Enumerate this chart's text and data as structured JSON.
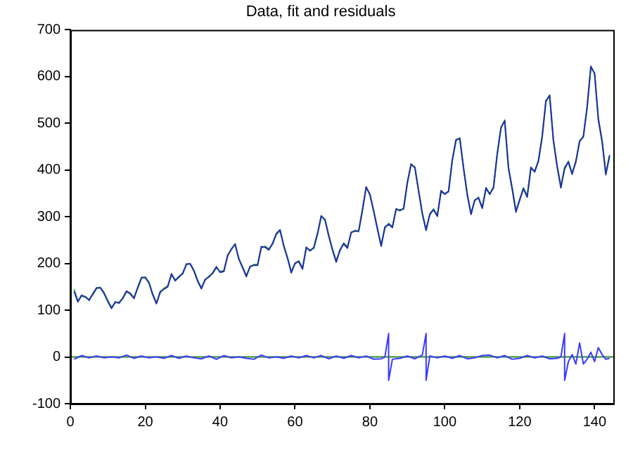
{
  "chart_data": {
    "type": "line",
    "title": "Data, fit and residuals",
    "xlim": [
      0,
      145
    ],
    "xticks": [
      0,
      20,
      40,
      60,
      80,
      100,
      120,
      140
    ],
    "ylim": [
      -100,
      700
    ],
    "yticks": [
      -100,
      0,
      100,
      200,
      300,
      400,
      500,
      600,
      700
    ],
    "grid": false,
    "legend": false,
    "marker": "none",
    "line_style": "solid",
    "ref_lines": [
      {
        "axis": "y",
        "value": 0,
        "color": "#2e8b2e"
      }
    ],
    "series": [
      {
        "color": "#1f2fa8",
        "x": [
          1,
          2,
          3,
          4,
          5,
          6,
          7,
          8,
          9,
          10,
          11,
          12,
          13,
          14,
          15,
          16,
          17,
          18,
          19,
          20,
          21,
          22,
          23,
          24,
          25,
          26,
          27,
          28,
          29,
          30,
          31,
          32,
          33,
          34,
          35,
          36,
          37,
          38,
          39,
          40,
          41,
          42,
          43,
          44,
          45,
          46,
          47,
          48,
          49,
          50,
          51,
          52,
          53,
          54,
          55,
          56,
          57,
          58,
          59,
          60,
          61,
          62,
          63,
          64,
          65,
          66,
          67,
          68,
          69,
          70,
          71,
          72,
          73,
          74,
          75,
          76,
          77,
          78,
          79,
          80,
          81,
          82,
          83,
          84,
          85,
          86,
          87,
          88,
          89,
          90,
          91,
          92,
          93,
          94,
          95,
          96,
          97,
          98,
          99,
          100,
          101,
          102,
          103,
          104,
          105,
          106,
          107,
          108,
          109,
          110,
          111,
          112,
          113,
          114,
          115,
          116,
          117,
          118,
          119,
          120,
          121,
          122,
          123,
          124,
          125,
          126,
          127,
          128,
          129,
          130,
          131,
          132,
          133,
          134,
          135,
          136,
          137,
          138,
          139,
          140,
          141,
          142,
          143,
          144
        ],
        "values": [
          140,
          118,
          132,
          129,
          121,
          135,
          148,
          148,
          136,
          119,
          104,
          118,
          115,
          126,
          141,
          135,
          125,
          149,
          170,
          170,
          158,
          133,
          114,
          140,
          145,
          150,
          178,
          163,
          172,
          178,
          199,
          199,
          184,
          162,
          146,
          166,
          171,
          180,
          193,
          181,
          183,
          218,
          230,
          242,
          209,
          191,
          172,
          194,
          196,
          196,
          236,
          235,
          229,
          243,
          264,
          272,
          237,
          211,
          180,
          201,
          204,
          188,
          235,
          227,
          234,
          264,
          302,
          293,
          259,
          229,
          203,
          229,
          242,
          233,
          267,
          269,
          270,
          315,
          364,
          347,
          312,
          274,
          237,
          278,
          284,
          277,
          317,
          313,
          318,
          374,
          413,
          405,
          355,
          306,
          271,
          306,
          315,
          301,
          356,
          348,
          355,
          422,
          465,
          467,
          404,
          347,
          305,
          336,
          340,
          318,
          362,
          348,
          363,
          435,
          491,
          505,
          404,
          359,
          310,
          337,
          360,
          342,
          406,
          396,
          420,
          472,
          548,
          559,
          463,
          407,
          362,
          405,
          417,
          391,
          419,
          461,
          472,
          535,
          622,
          606,
          508,
          461,
          390,
          432
        ]
      },
      {
        "color": "#4caf4c",
        "x": [
          1,
          2,
          3,
          4,
          5,
          6,
          7,
          8,
          9,
          10,
          11,
          12,
          13,
          14,
          15,
          16,
          17,
          18,
          19,
          20,
          21,
          22,
          23,
          24,
          25,
          26,
          27,
          28,
          29,
          30,
          31,
          32,
          33,
          34,
          35,
          36,
          37,
          38,
          39,
          40,
          41,
          42,
          43,
          44,
          45,
          46,
          47,
          48,
          49,
          50,
          51,
          52,
          53,
          54,
          55,
          56,
          57,
          58,
          59,
          60,
          61,
          62,
          63,
          64,
          65,
          66,
          67,
          68,
          69,
          70,
          71,
          72,
          73,
          74,
          75,
          76,
          77,
          78,
          79,
          80,
          81,
          82,
          83,
          84,
          85,
          86,
          87,
          88,
          89,
          90,
          91,
          92,
          93,
          94,
          95,
          96,
          97,
          98,
          99,
          100,
          101,
          102,
          103,
          104,
          105,
          106,
          107,
          108,
          109,
          110,
          111,
          112,
          113,
          114,
          115,
          116,
          117,
          118,
          119,
          120,
          121,
          122,
          123,
          124,
          125,
          126,
          127,
          128,
          129,
          130,
          131,
          132,
          133,
          134,
          135,
          136,
          137,
          138,
          139,
          140,
          141,
          142,
          143,
          144
        ],
        "values": [
          145,
          120,
          130,
          128,
          123,
          133,
          146,
          149,
          138,
          121,
          106,
          116,
          117,
          125,
          139,
          137,
          127,
          147,
          168,
          171,
          160,
          135,
          116,
          137,
          147,
          152,
          175,
          165,
          170,
          180,
          197,
          200,
          186,
          164,
          148,
          164,
          173,
          178,
          191,
          183,
          185,
          215,
          232,
          240,
          211,
          193,
          174,
          192,
          198,
          198,
          233,
          237,
          231,
          241,
          262,
          270,
          239,
          213,
          183,
          199,
          206,
          191,
          232,
          229,
          232,
          262,
          300,
          295,
          261,
          231,
          206,
          227,
          244,
          236,
          265,
          271,
          268,
          312,
          362,
          349,
          314,
          276,
          240,
          275,
          286,
          279,
          315,
          315,
          316,
          371,
          411,
          407,
          357,
          308,
          274,
          304,
          317,
          303,
          353,
          350,
          353,
          419,
          463,
          469,
          406,
          349,
          308,
          334,
          342,
          321,
          359,
          350,
          361,
          432,
          489,
          507,
          406,
          362,
          314,
          334,
          362,
          345,
          403,
          398,
          418,
          469,
          546,
          561,
          465,
          410,
          366,
          401,
          419,
          394,
          416,
          463,
          470,
          532,
          619,
          608,
          511,
          464,
          394,
          428
        ]
      },
      {
        "color": "#3a3aff",
        "x": [
          1,
          3,
          5,
          7,
          9,
          11,
          13,
          15,
          17,
          19,
          21,
          23,
          25,
          27,
          29,
          31,
          33,
          35,
          37,
          39,
          41,
          43,
          45,
          47,
          49,
          51,
          53,
          55,
          57,
          59,
          61,
          63,
          65,
          67,
          69,
          71,
          73,
          75,
          77,
          79,
          81,
          83,
          84,
          85,
          85,
          86,
          88,
          90,
          92,
          94,
          95,
          95,
          96,
          98,
          100,
          102,
          104,
          106,
          108,
          110,
          112,
          114,
          116,
          118,
          120,
          122,
          124,
          126,
          128,
          130,
          131,
          132,
          132,
          133,
          134,
          135,
          136,
          137,
          138,
          139,
          140,
          141,
          142,
          143,
          144
        ],
        "values": [
          -5,
          3,
          -2,
          2,
          -2,
          0,
          -2,
          4,
          -3,
          2,
          -2,
          0,
          -3,
          3,
          -3,
          2,
          -2,
          -4,
          2,
          -5,
          3,
          -2,
          0,
          -3,
          -5,
          4,
          -2,
          0,
          -3,
          2,
          -2,
          3,
          -2,
          3,
          -4,
          2,
          -3,
          3,
          -2,
          2,
          -5,
          -4,
          0,
          50,
          -50,
          -5,
          -3,
          2,
          -4,
          4,
          50,
          -50,
          2,
          -2,
          2,
          -3,
          3,
          -4,
          -2,
          3,
          4,
          -2,
          3,
          -5,
          -3,
          3,
          -2,
          2,
          -4,
          -3,
          0,
          50,
          -50,
          -10,
          5,
          -15,
          30,
          -15,
          -5,
          10,
          -10,
          20,
          5,
          -5,
          -3
        ]
      }
    ]
  }
}
